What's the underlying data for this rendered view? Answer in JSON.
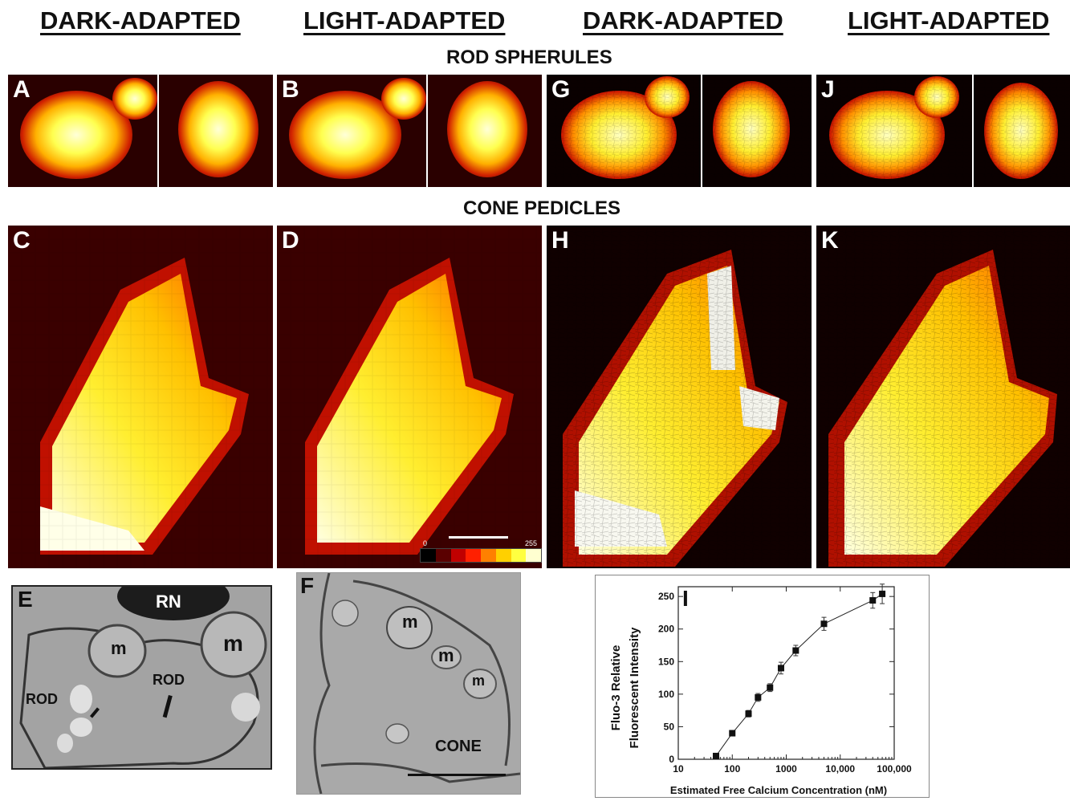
{
  "headers": [
    "DARK-ADAPTED",
    "LIGHT-ADAPTED",
    "DARK-ADAPTED",
    "LIGHT-ADAPTED"
  ],
  "section_titles": {
    "rods": "ROD SPHERULES",
    "cones": "CONE PEDICLES"
  },
  "panel_labels": {
    "a": "A",
    "b": "B",
    "g": "G",
    "j": "J",
    "c": "C",
    "d": "D",
    "h": "H",
    "k": "K",
    "e": "E",
    "f": "F",
    "i": "I"
  },
  "em_e": {
    "rn": "RN",
    "m1": "m",
    "m2": "m",
    "rod1": "ROD",
    "rod2": "ROD"
  },
  "em_f": {
    "m1": "m",
    "m2": "m",
    "m3": "m",
    "cone": "CONE"
  },
  "colorbar": {
    "min": "0",
    "max": "255",
    "colors": [
      "#000000",
      "#5a0000",
      "#c00000",
      "#ff2000",
      "#ff8000",
      "#ffd000",
      "#ffff40",
      "#ffffd0"
    ]
  },
  "chart_data": {
    "type": "scatter",
    "xlabel": "Estimated Free Calcium Concentration (nM)",
    "ylabel_line1": "Fluo-3 Relative",
    "ylabel_line2": "Fluorescent Intensity",
    "x_scale": "log",
    "xlim": [
      10,
      100000
    ],
    "ylim": [
      0,
      265
    ],
    "xticks": [
      "10",
      "100",
      "1000",
      "10,000",
      "100,000"
    ],
    "yticks": [
      "0",
      "50",
      "100",
      "150",
      "200",
      "250"
    ],
    "points": [
      {
        "x": 50,
        "y": 5,
        "err": 3
      },
      {
        "x": 100,
        "y": 40,
        "err": 4
      },
      {
        "x": 200,
        "y": 70,
        "err": 5
      },
      {
        "x": 300,
        "y": 95,
        "err": 6
      },
      {
        "x": 500,
        "y": 110,
        "err": 6
      },
      {
        "x": 800,
        "y": 140,
        "err": 9
      },
      {
        "x": 1500,
        "y": 167,
        "err": 8
      },
      {
        "x": 5000,
        "y": 208,
        "err": 10
      },
      {
        "x": 40000,
        "y": 244,
        "err": 12
      },
      {
        "x": 60000,
        "y": 254,
        "err": 15
      }
    ]
  }
}
